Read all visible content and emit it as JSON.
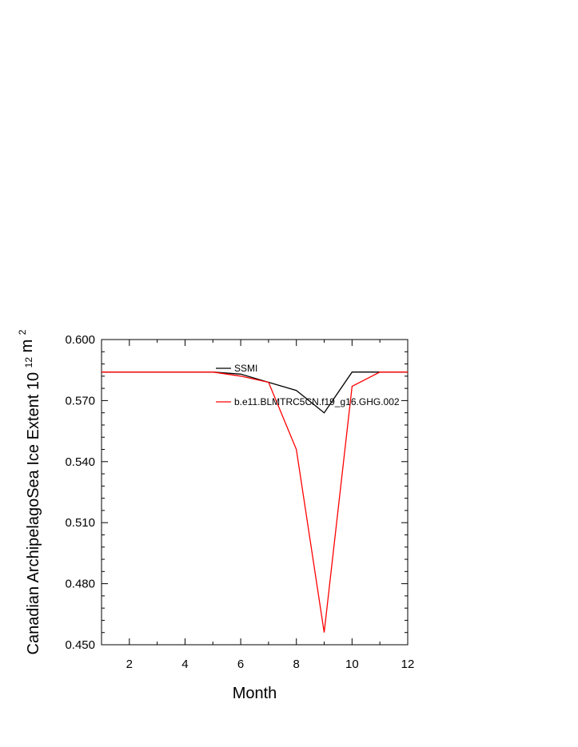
{
  "chart_data": {
    "type": "line",
    "xlabel": "Month",
    "ylabel": "Canadian ArchipelagoSea Ice Extent 10",
    "ylabel_exp": "12",
    "ylabel_unit": "m",
    "ylabel_unit_exp": "2",
    "xlim": [
      1,
      12
    ],
    "ylim": [
      0.45,
      0.6
    ],
    "x_ticks": [
      2,
      4,
      6,
      8,
      10,
      12
    ],
    "y_ticks": [
      "0.450",
      "0.480",
      "0.510",
      "0.540",
      "0.570",
      "0.600"
    ],
    "grid": false,
    "legend_position": "top-right",
    "series": [
      {
        "name": "SSMI",
        "color": "#000000",
        "x": [
          1,
          2,
          3,
          4,
          5,
          6,
          7,
          8,
          9,
          10,
          11,
          12
        ],
        "y": [
          0.584,
          0.584,
          0.584,
          0.584,
          0.584,
          0.583,
          0.579,
          0.575,
          0.564,
          0.584,
          0.584,
          0.584
        ]
      },
      {
        "name": "b.e11.BLMTRC5CN.f19_g16.GHG.002",
        "color": "#ff0000",
        "x": [
          1,
          2,
          3,
          4,
          5,
          6,
          7,
          8,
          9,
          10,
          11,
          12
        ],
        "y": [
          0.584,
          0.584,
          0.584,
          0.584,
          0.584,
          0.582,
          0.579,
          0.546,
          0.456,
          0.577,
          0.584,
          0.584
        ]
      }
    ]
  }
}
